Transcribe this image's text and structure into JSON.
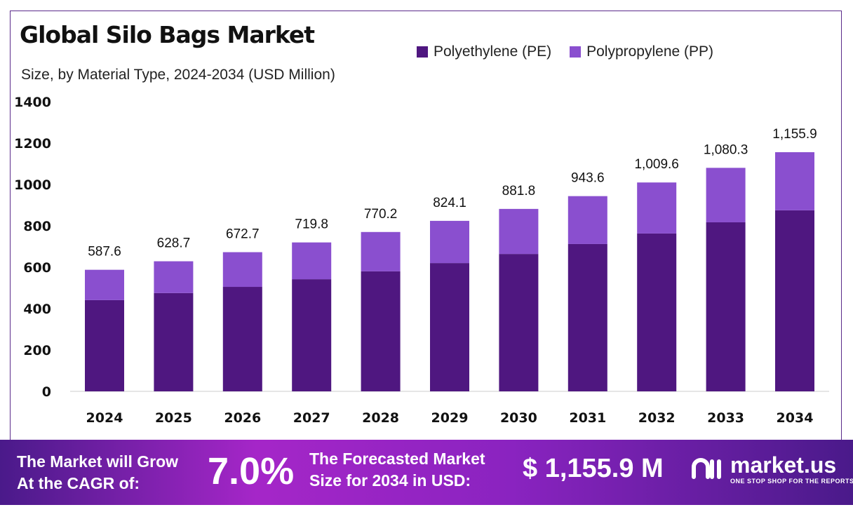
{
  "chart_data": {
    "type": "bar",
    "stacked": true,
    "title": "Global Silo Bags Market",
    "subtitle": "Size, by Material Type, 2024-2034 (USD Million)",
    "categories": [
      "2024",
      "2025",
      "2026",
      "2027",
      "2028",
      "2029",
      "2030",
      "2031",
      "2032",
      "2033",
      "2034"
    ],
    "series": [
      {
        "name": "Polyethylene (PE)",
        "color": "#4f1780",
        "values": [
          441,
          475,
          505,
          542,
          580,
          620,
          664,
          712,
          763,
          817,
          875
        ]
      },
      {
        "name": "Polypropylene (PP)",
        "color": "#8a4fcf",
        "values": [
          146.6,
          153.7,
          167.7,
          177.8,
          190.2,
          204.1,
          217.8,
          231.6,
          246.6,
          263.3,
          280.9
        ]
      }
    ],
    "totals": [
      587.6,
      628.7,
      672.7,
      719.8,
      770.2,
      824.1,
      881.8,
      943.6,
      1009.6,
      1080.3,
      1155.9
    ],
    "total_labels": [
      "587.6",
      "628.7",
      "672.7",
      "719.8",
      "770.2",
      "824.1",
      "881.8",
      "943.6",
      "1,009.6",
      "1,080.3",
      "1,155.9"
    ],
    "yticks": [
      "0",
      "200",
      "400",
      "600",
      "800",
      "1000",
      "1200",
      "1400"
    ],
    "ylim": [
      0,
      1400
    ],
    "grid": false,
    "legend": "top-right"
  },
  "footer": {
    "cagr_text": "The Market will Grow At the CAGR of:",
    "cagr_line1": "The Market will Grow",
    "cagr_line2": "At the CAGR of:",
    "cagr_value": "7.0%",
    "forecast_line1": "The Forecasted Market",
    "forecast_line2": "Size for 2034 in USD:",
    "forecast_value": "$ 1,155.9 M",
    "logo_name": "market.us",
    "logo_tagline": "ONE STOP SHOP FOR THE REPORTS"
  }
}
